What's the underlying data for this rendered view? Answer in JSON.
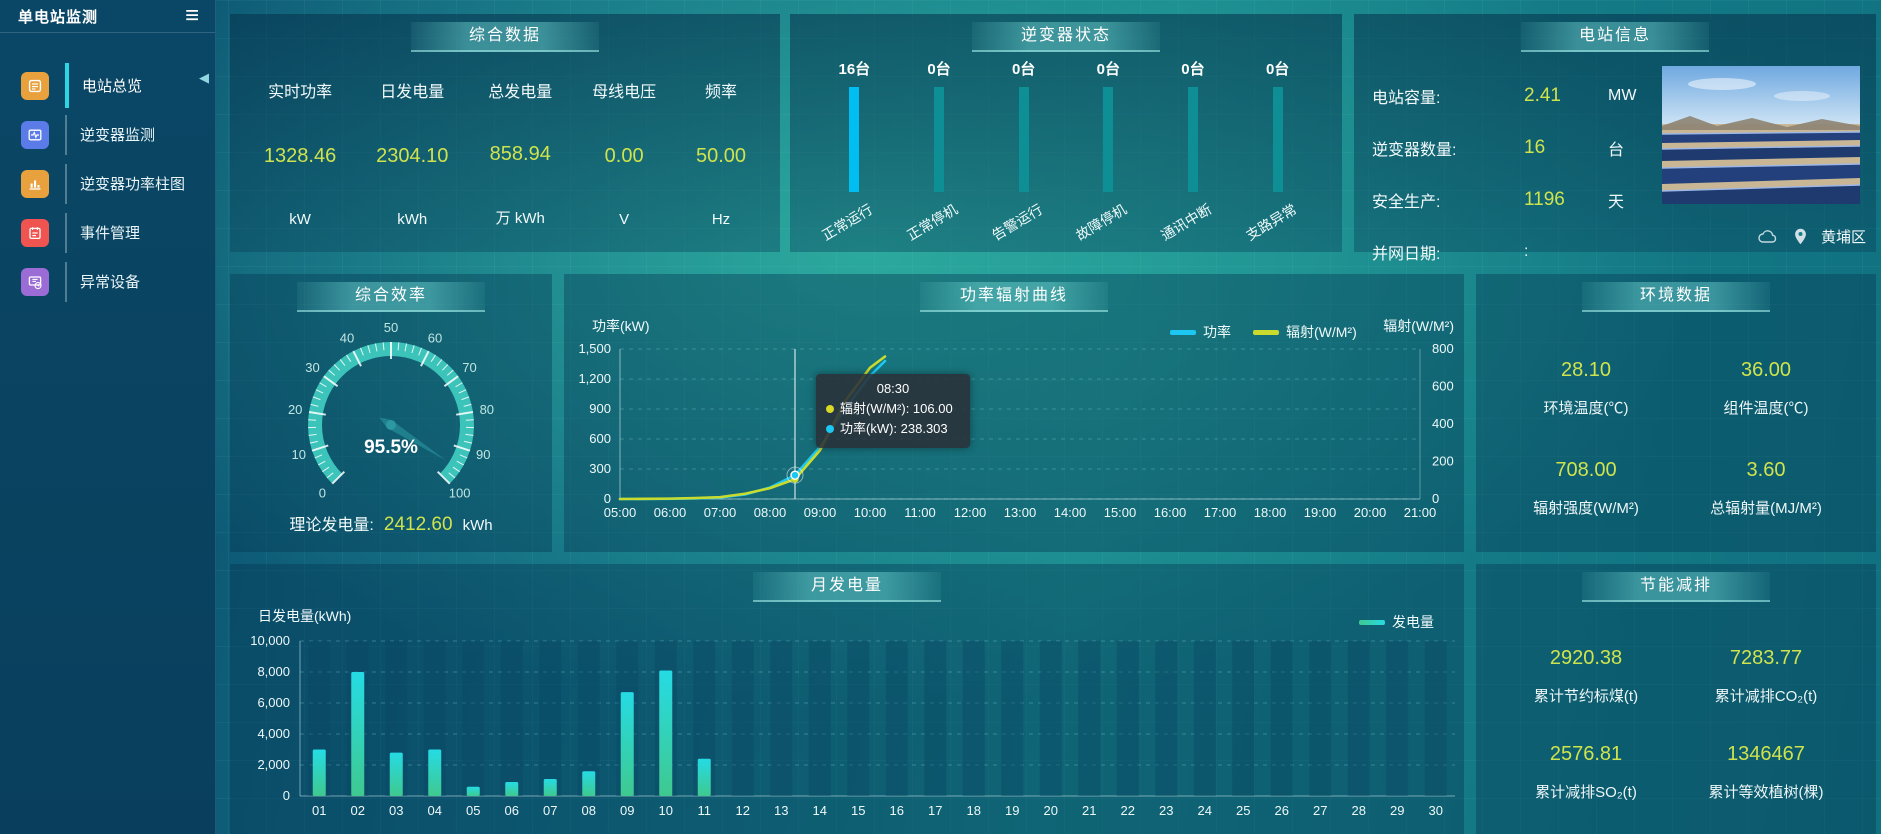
{
  "colors": {
    "value_accent": "#cfe34d",
    "bar_active": "#00bdf2",
    "bar_idle": "#0e8f96",
    "power_line": "#1cc8f2",
    "radiation_line": "#c9dc2e",
    "gen_bar_top": "#25dbe4",
    "gen_bar_bottom": "#3fc98f",
    "gauge_ring": "#3cc3ba",
    "needle": "#1f7f8c"
  },
  "sidebar": {
    "title": "单电站监测",
    "menu_icon": "≡",
    "collapse_icon": "◀",
    "items": [
      {
        "label": "电站总览",
        "icon": "overview-icon",
        "color": "#e8a13c",
        "active": true
      },
      {
        "label": "逆变器监测",
        "icon": "inverter-monitor-icon",
        "color": "#5b7be8",
        "active": false
      },
      {
        "label": "逆变器功率柱图",
        "icon": "power-bars-icon",
        "color": "#e8a13c",
        "active": false
      },
      {
        "label": "事件管理",
        "icon": "event-icon",
        "color": "#f05450",
        "active": false
      },
      {
        "label": "异常设备",
        "icon": "abnormal-device-icon",
        "color": "#9b6bd6",
        "active": false
      }
    ]
  },
  "panels": {
    "summary": {
      "title": "综合数据",
      "metrics": [
        {
          "label": "实时功率",
          "value": "1328.46",
          "unit": "kW"
        },
        {
          "label": "日发电量",
          "value": "2304.10",
          "unit": "kWh"
        },
        {
          "label": "总发电量",
          "value": "858.94",
          "unit": "万  kWh"
        },
        {
          "label": "母线电压",
          "value": "0.00",
          "unit": "V"
        },
        {
          "label": "频率",
          "value": "50.00",
          "unit": "Hz"
        }
      ]
    },
    "inverter": {
      "title": "逆变器状态"
    },
    "station": {
      "title": "电站信息",
      "rows": [
        {
          "label": "电站容量:",
          "value": "2.41",
          "unit": "MW",
          "plain": false
        },
        {
          "label": "逆变器数量:",
          "value": "16",
          "unit": "台",
          "plain": false
        },
        {
          "label": "安全生产:",
          "value": "1196",
          "unit": "天",
          "plain": false
        },
        {
          "label": "并网日期:",
          "value": ":",
          "unit": "",
          "plain": true
        }
      ],
      "location": "黄埔区"
    },
    "efficiency": {
      "title": "综合效率",
      "gauge_label": "95.5%",
      "theory": {
        "label": "理论发电量:",
        "value": "2412.60",
        "unit": "kWh"
      }
    },
    "curve": {
      "title": "功率辐射曲线"
    },
    "environment": {
      "title": "环境数据",
      "items": [
        {
          "value": "28.10",
          "label": "环境温度(℃)"
        },
        {
          "value": "36.00",
          "label": "组件温度(℃)"
        },
        {
          "value": "708.00",
          "label": "辐射强度(W/M²)"
        },
        {
          "value": "3.60",
          "label": "总辐射量(MJ/M²)"
        }
      ]
    },
    "monthly": {
      "title": "月发电量"
    },
    "saving": {
      "title": "节能减排",
      "items": [
        {
          "value": "2920.38",
          "label": "累计节约标煤(t)"
        },
        {
          "value": "7283.77",
          "label": "累计减排CO₂(t)"
        },
        {
          "value": "2576.81",
          "label": "累计减排SO₂(t)"
        },
        {
          "value": "1346467",
          "label": "累计等效植树(棵)"
        }
      ]
    }
  },
  "chart_data": [
    {
      "id": "inverter-status",
      "type": "bar",
      "title": "逆变器状态",
      "categories": [
        "正常运行",
        "正常停机",
        "告警运行",
        "故障停机",
        "通讯中断",
        "支路异常"
      ],
      "values": [
        16,
        0,
        0,
        0,
        0,
        0
      ],
      "value_labels": [
        "16台",
        "0台",
        "0台",
        "0台",
        "0台",
        "0台"
      ],
      "bar_colors": [
        "#00bdf2",
        "#0e8f96",
        "#0e8f96",
        "#0e8f96",
        "#0e8f96",
        "#0e8f96"
      ]
    },
    {
      "id": "efficiency-gauge",
      "type": "gauge",
      "title": "综合效率",
      "value": 95.5,
      "min": 0,
      "max": 100,
      "tick_labels": [
        0,
        10,
        20,
        30,
        40,
        50,
        60,
        70,
        80,
        90,
        100
      ]
    },
    {
      "id": "power-radiation",
      "type": "line",
      "title": "功率辐射曲线",
      "x_range": [
        5,
        21
      ],
      "x": [
        5,
        5.5,
        6,
        6.5,
        7,
        7.5,
        8,
        8.5,
        9,
        9.5,
        10,
        10.3
      ],
      "x_axis_labels": [
        "05:00",
        "06:00",
        "07:00",
        "08:00",
        "09:00",
        "10:00",
        "11:00",
        "12:00",
        "13:00",
        "14:00",
        "15:00",
        "16:00",
        "17:00",
        "18:00",
        "19:00",
        "20:00",
        "21:00"
      ],
      "series": [
        {
          "name": "功率",
          "axis": "left",
          "color": "#1cc8f2",
          "values": [
            0,
            0,
            2,
            6,
            15,
            45,
            115,
            238.303,
            520,
            900,
            1230,
            1380
          ]
        },
        {
          "name": "辐射(W/M²)",
          "axis": "right",
          "color": "#c9dc2e",
          "values": [
            0,
            1,
            2,
            5,
            10,
            28,
            58,
            106,
            260,
            520,
            700,
            760
          ]
        }
      ],
      "left_axis": {
        "label": "功率(kW)",
        "ticks": [
          "1,500",
          "1,200",
          "900",
          "600",
          "300",
          "0"
        ],
        "max": 1500
      },
      "right_axis": {
        "label": "辐射(W/M²)",
        "ticks": [
          "800",
          "600",
          "400",
          "200",
          "0"
        ],
        "max": 800
      },
      "tooltip": {
        "time": "08:30",
        "x": 8.5,
        "rows": [
          {
            "dot": "#d9d926",
            "text": "辐射(W/M²): 106.00"
          },
          {
            "dot": "#1cc8f2",
            "text": "功率(kW): 238.303"
          }
        ]
      }
    },
    {
      "id": "monthly-generation",
      "type": "bar",
      "title": "月发电量",
      "legend": "发电量",
      "y_axis": {
        "label": "日发电量(kWh)",
        "ticks": [
          "10,000",
          "8,000",
          "6,000",
          "4,000",
          "2,000",
          "0"
        ],
        "max": 10000
      },
      "categories": [
        "01",
        "02",
        "03",
        "04",
        "05",
        "06",
        "07",
        "08",
        "09",
        "10",
        "11",
        "12",
        "13",
        "14",
        "15",
        "16",
        "17",
        "18",
        "19",
        "20",
        "21",
        "22",
        "23",
        "24",
        "25",
        "26",
        "27",
        "28",
        "29",
        "30"
      ],
      "values": [
        3000,
        8000,
        2800,
        3000,
        600,
        900,
        1100,
        1600,
        6700,
        8100,
        2400,
        0,
        0,
        0,
        0,
        0,
        0,
        0,
        0,
        0,
        0,
        0,
        0,
        0,
        0,
        0,
        0,
        0,
        0,
        0
      ]
    }
  ]
}
